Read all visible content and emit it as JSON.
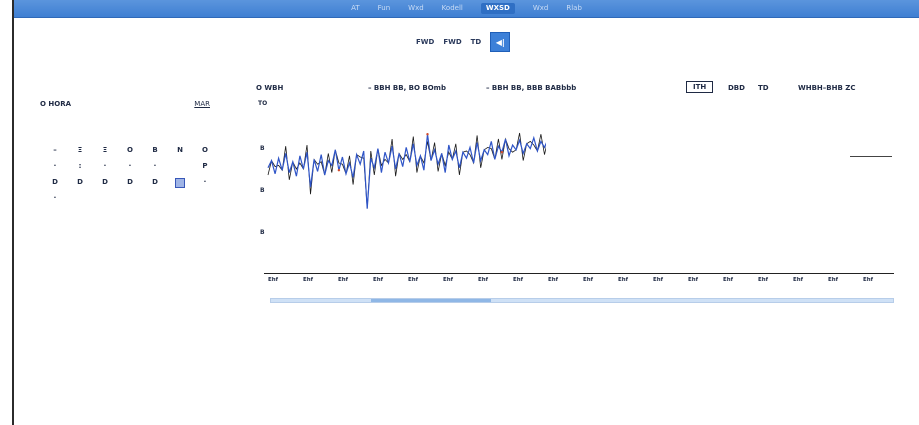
{
  "topbar": {
    "tabs": [
      {
        "label": "AT",
        "active": false
      },
      {
        "label": "Fun",
        "active": false
      },
      {
        "label": "Wxd",
        "active": false
      },
      {
        "label": "Kodell",
        "active": false
      },
      {
        "label": "WXSD",
        "active": true
      },
      {
        "label": "Wxd",
        "active": false
      },
      {
        "label": "Rlab",
        "active": false
      }
    ]
  },
  "range": {
    "buttons": [
      {
        "label": "FWD",
        "active": false
      },
      {
        "label": "FWD",
        "active": false
      },
      {
        "label": "TD",
        "active": false
      },
      {
        "label": "◀|",
        "active": true
      }
    ]
  },
  "calendar": {
    "title": "O HORA",
    "month": "MAR",
    "rows": [
      [
        "–",
        "Ξ",
        "Ξ",
        "O",
        "B",
        "N",
        "O"
      ],
      [
        "·",
        ":",
        "·",
        "·",
        "·",
        "",
        "P"
      ],
      [
        "D",
        "D",
        "D",
        "D",
        "D",
        "",
        "·"
      ],
      [
        "·",
        "",
        "",
        "",
        "",
        "",
        ""
      ]
    ],
    "selected_day_index": [
      2,
      5
    ]
  },
  "chart": {
    "title": "O WBH",
    "legend": [
      "– BBH BB, BO BOmb",
      "– BBH BB, BBB BABbbb"
    ],
    "modes": [
      "ITH",
      "DBD",
      "TD"
    ],
    "active_mode": 0,
    "note": "WHBH–BHB ZC",
    "y_labels": [
      "TO",
      "B",
      "B",
      "B"
    ],
    "x_ticks": [
      "Ehf",
      "Ehf",
      "Ehf",
      "Ehf",
      "Ehf",
      "Ehf",
      "Ehf",
      "Ehf",
      "Ehf",
      "Ehf",
      "Ehf",
      "Ehf",
      "Ehf",
      "Ehf",
      "Ehf",
      "Ehf",
      "Ehf",
      "Ehf"
    ],
    "series_colors": {
      "primary": "#2f55c8",
      "secondary": "#1b1b1b",
      "accent": "#d14a2a"
    }
  },
  "chart_data": {
    "type": "line",
    "x": [
      0,
      1,
      2,
      3,
      4,
      5,
      6,
      7,
      8,
      9,
      10,
      11,
      12,
      13,
      14,
      15,
      16,
      17,
      18,
      19,
      20,
      21,
      22,
      23,
      24,
      25,
      26,
      27,
      28,
      29,
      30,
      31,
      32,
      33,
      34,
      35,
      36,
      37,
      38,
      39,
      40,
      41,
      42,
      43,
      44,
      45,
      46,
      47,
      48,
      49,
      50,
      51,
      52,
      53,
      54,
      55,
      56,
      57,
      58,
      59,
      60,
      61,
      62,
      63,
      64,
      65,
      66,
      67,
      68,
      69,
      70,
      71,
      72,
      73,
      74,
      75,
      76,
      77,
      78,
      79
    ],
    "series": [
      {
        "values": [
          5.6,
          6.2,
          5.1,
          6.4,
          5.4,
          6.8,
          5.2,
          6.1,
          4.9,
          6.6,
          5.5,
          6.9,
          4.0,
          6.3,
          5.3,
          6.7,
          5.0,
          6.2,
          5.8,
          7.1,
          5.4,
          6.5,
          5.1,
          6.0,
          4.8,
          6.7,
          5.9,
          7.0,
          2.2,
          6.4,
          5.6,
          7.2,
          5.2,
          6.9,
          6.0,
          7.4,
          5.5,
          6.8,
          5.7,
          7.3,
          6.1,
          7.6,
          5.8,
          6.6,
          5.4,
          8.4,
          6.2,
          7.1,
          5.9,
          6.8,
          5.2,
          7.5,
          6.3,
          7.0,
          5.6,
          6.9,
          6.4,
          7.3,
          6.0,
          7.7,
          6.2,
          7.1,
          6.7,
          7.8,
          6.3,
          7.4,
          6.9,
          8.0,
          6.6,
          7.5,
          7.1,
          7.9,
          6.8,
          7.6,
          7.2,
          8.1,
          7.0,
          7.8,
          7.3,
          8.0
        ]
      }
    ],
    "ylim": [
      0,
      10
    ]
  }
}
